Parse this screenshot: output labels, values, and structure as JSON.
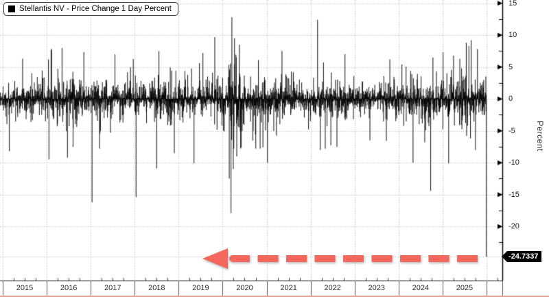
{
  "legend": {
    "label": "Stellantis NV - Price Change 1 Day Percent",
    "marker_color": "#000000"
  },
  "y_axis": {
    "label": "Percent",
    "ticks": [
      "15",
      "10",
      "5",
      "0",
      "-5",
      "-10",
      "-15",
      "-20"
    ],
    "tick_values": [
      15,
      10,
      5,
      0,
      -5,
      -10,
      -15,
      -20
    ],
    "minor_tick_values": [
      12.5,
      7.5,
      2.5,
      -2.5,
      -7.5,
      -12.5,
      -17.5,
      -22.5
    ],
    "last_value_label": "-24.7337",
    "last_value": -24.7337
  },
  "x_axis": {
    "years": [
      "2015",
      "2016",
      "2017",
      "2018",
      "2019",
      "2020",
      "2021",
      "2022",
      "2023",
      "2024",
      "2025"
    ]
  },
  "annotation": {
    "arrow_direction": "left",
    "arrow_color": "#f4675c",
    "arrow_points_to_value": -24.7337
  },
  "colors": {
    "bars": "#000000",
    "grid": "#ababab",
    "axis": "#000000",
    "tag_bg": "#000000",
    "tag_fg": "#ffffff",
    "bottom_line": "#dfa294"
  },
  "chart_data": {
    "type": "bar",
    "title": "Stellantis NV - Price Change 1 Day Percent",
    "xlabel": "",
    "ylabel": "Percent",
    "legend_position": "top-left",
    "grid": true,
    "ylim": [
      -27.5,
      16
    ],
    "baseline": 0,
    "x_start_year": 2014.94,
    "x_end_year": 2026.0,
    "points_per_year": 252,
    "seed": 1337,
    "base_daily_volatility_pct": 1.55,
    "random_clip_pct": 7.8,
    "volatility_periods": [
      {
        "from": 2014.94,
        "to": 2015.5,
        "vol": 1.7
      },
      {
        "from": 2015.5,
        "to": 2016.0,
        "vol": 1.8
      },
      {
        "from": 2016.0,
        "to": 2016.7,
        "vol": 2.1
      },
      {
        "from": 2016.7,
        "to": 2018.3,
        "vol": 1.7
      },
      {
        "from": 2018.3,
        "to": 2019.0,
        "vol": 1.9
      },
      {
        "from": 2019.0,
        "to": 2019.8,
        "vol": 1.6
      },
      {
        "from": 2019.8,
        "to": 2020.1,
        "vol": 1.8
      },
      {
        "from": 2020.1,
        "to": 2020.5,
        "vol": 3.4
      },
      {
        "from": 2020.5,
        "to": 2021.0,
        "vol": 2.1
      },
      {
        "from": 2021.0,
        "to": 2021.5,
        "vol": 1.9
      },
      {
        "from": 2021.5,
        "to": 2022.0,
        "vol": 1.7
      },
      {
        "from": 2022.0,
        "to": 2022.8,
        "vol": 2.0
      },
      {
        "from": 2022.8,
        "to": 2023.8,
        "vol": 1.5
      },
      {
        "from": 2023.8,
        "to": 2024.5,
        "vol": 1.8
      },
      {
        "from": 2024.5,
        "to": 2025.0,
        "vol": 2.1
      },
      {
        "from": 2025.0,
        "to": 2026.0,
        "vol": 2.2
      }
    ],
    "notable_moves": [
      {
        "year": 2015.15,
        "value": -8.2
      },
      {
        "year": 2015.45,
        "value": 6.3
      },
      {
        "year": 2016.05,
        "value": -9.5
      },
      {
        "year": 2016.1,
        "value": 7.7
      },
      {
        "year": 2016.35,
        "value": 8.0
      },
      {
        "year": 2016.47,
        "value": -9.2
      },
      {
        "year": 2016.6,
        "value": -7.5
      },
      {
        "year": 2017.03,
        "value": -16.2
      },
      {
        "year": 2017.2,
        "value": -7.8
      },
      {
        "year": 2017.55,
        "value": 7.0
      },
      {
        "year": 2018.03,
        "value": -15.4
      },
      {
        "year": 2018.5,
        "value": -10.9
      },
      {
        "year": 2018.55,
        "value": 7.5
      },
      {
        "year": 2018.9,
        "value": -8.5
      },
      {
        "year": 2019.35,
        "value": -10.1
      },
      {
        "year": 2019.55,
        "value": 7.2
      },
      {
        "year": 2019.82,
        "value": 9.7
      },
      {
        "year": 2020.15,
        "value": -12.5
      },
      {
        "year": 2020.19,
        "value": -17.9
      },
      {
        "year": 2020.21,
        "value": 12.8
      },
      {
        "year": 2020.24,
        "value": -11.0
      },
      {
        "year": 2020.27,
        "value": 9.5
      },
      {
        "year": 2020.32,
        "value": -9.0
      },
      {
        "year": 2020.38,
        "value": 8.5
      },
      {
        "year": 2020.42,
        "value": -7.6
      },
      {
        "year": 2021.02,
        "value": -10.0
      },
      {
        "year": 2021.35,
        "value": 7.5
      },
      {
        "year": 2022.16,
        "value": 12.4
      },
      {
        "year": 2022.22,
        "value": -8.0
      },
      {
        "year": 2022.6,
        "value": -7.5
      },
      {
        "year": 2022.78,
        "value": 7.0
      },
      {
        "year": 2023.35,
        "value": -6.5
      },
      {
        "year": 2023.8,
        "value": 6.2
      },
      {
        "year": 2024.33,
        "value": -10.0
      },
      {
        "year": 2024.73,
        "value": -14.4
      },
      {
        "year": 2024.78,
        "value": 6.5
      },
      {
        "year": 2025.14,
        "value": -10.1
      },
      {
        "year": 2025.25,
        "value": 6.8
      },
      {
        "year": 2025.54,
        "value": 8.8
      },
      {
        "year": 2025.6,
        "value": 8.3
      },
      {
        "year": 2025.65,
        "value": 9.2
      },
      {
        "year": 2025.75,
        "value": -8.0
      }
    ],
    "last_point": {
      "value": -24.7337
    }
  }
}
